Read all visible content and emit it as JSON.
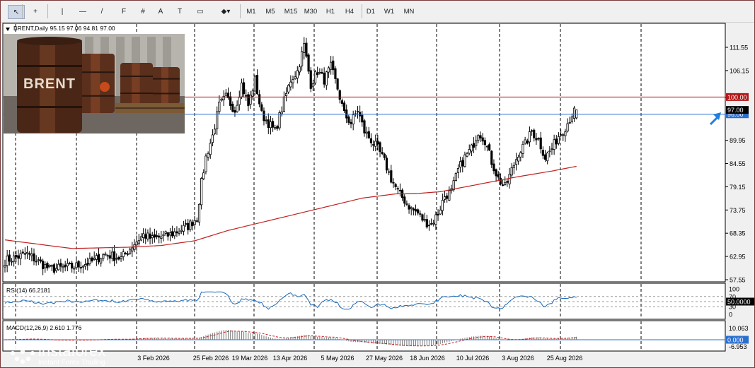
{
  "toolbar": {
    "tools": [
      {
        "name": "cursor-icon",
        "glyph": "↖"
      },
      {
        "name": "crosshair-icon",
        "glyph": "+"
      },
      {
        "name": "vertical-line-icon",
        "glyph": "|"
      },
      {
        "name": "horizontal-line-icon",
        "glyph": "—"
      },
      {
        "name": "trendline-icon",
        "glyph": "/"
      },
      {
        "name": "fibonacci-icon",
        "glyph": "F"
      },
      {
        "name": "grid-tool-icon",
        "glyph": "#"
      },
      {
        "name": "text-tool-icon",
        "glyph": "A"
      },
      {
        "name": "text-label-icon",
        "glyph": "T"
      },
      {
        "name": "rectangle-icon",
        "glyph": "▭"
      },
      {
        "name": "shapes-menu-icon",
        "glyph": "◆▾"
      }
    ],
    "timeframes": [
      "M1",
      "M5",
      "M15",
      "M30",
      "H1",
      "H4",
      "D1",
      "W1",
      "MN"
    ]
  },
  "chart_data": {
    "type": "candlestick",
    "symbol_line": {
      "symbol": "BRENT",
      "period": "Daily",
      "open": "95.15",
      "high": "97.06",
      "low": "94.81",
      "close": "97.00"
    },
    "y_ticks": [
      "111.55",
      "106.15",
      "99.95",
      "89.95",
      "84.55",
      "79.15",
      "73.75",
      "68.35",
      "62.95",
      "57.55"
    ],
    "x_ticks": [
      "3 Feb 2026",
      "25 Feb 2026",
      "19 Mar 2026",
      "13 Apr 2026",
      "5 May 2026",
      "27 May 2026",
      "18 Jun 2026",
      "10 Jul 2026",
      "3 Aug 2026",
      "25 Aug 2026"
    ],
    "levels": [
      {
        "value": 100.0,
        "label": "100.00",
        "color": "#b01818"
      },
      {
        "value": 96.0,
        "label": "96.00",
        "color": "#2a6fd0"
      },
      {
        "value": 97.0,
        "label": "97.00",
        "color": "#000000"
      }
    ],
    "close_anchors": [
      [
        0,
        62
      ],
      [
        10,
        63.5
      ],
      [
        20,
        60
      ],
      [
        30,
        60.5
      ],
      [
        38,
        61.5
      ],
      [
        45,
        63.5
      ],
      [
        52,
        62.5
      ],
      [
        58,
        66
      ],
      [
        62,
        68
      ],
      [
        66,
        67
      ],
      [
        74,
        68
      ],
      [
        82,
        70
      ],
      [
        86,
        72
      ],
      [
        88,
        80
      ],
      [
        90,
        86
      ],
      [
        93,
        91
      ],
      [
        96,
        98
      ],
      [
        99,
        100
      ],
      [
        103,
        97
      ],
      [
        106,
        103
      ],
      [
        109,
        98
      ],
      [
        112,
        104
      ],
      [
        115,
        96
      ],
      [
        118,
        94
      ],
      [
        121,
        92
      ],
      [
        125,
        99
      ],
      [
        128,
        104
      ],
      [
        131,
        106
      ],
      [
        134,
        112
      ],
      [
        137,
        103
      ],
      [
        140,
        106
      ],
      [
        143,
        104
      ],
      [
        146,
        107
      ],
      [
        149,
        102
      ],
      [
        152,
        96
      ],
      [
        155,
        94
      ],
      [
        158,
        97
      ],
      [
        161,
        92
      ],
      [
        164,
        90
      ],
      [
        167,
        88
      ],
      [
        170,
        85
      ],
      [
        173,
        81
      ],
      [
        176,
        78
      ],
      [
        179,
        76
      ],
      [
        182,
        74
      ],
      [
        185,
        73
      ],
      [
        188,
        71
      ],
      [
        191,
        70.5
      ],
      [
        194,
        73
      ],
      [
        197,
        77
      ],
      [
        200,
        78
      ],
      [
        203,
        83
      ],
      [
        206,
        86
      ],
      [
        209,
        88
      ],
      [
        212,
        92
      ],
      [
        215,
        90
      ],
      [
        218,
        85
      ],
      [
        221,
        81
      ],
      [
        224,
        79
      ],
      [
        227,
        83
      ],
      [
        230,
        87
      ],
      [
        233,
        89
      ],
      [
        236,
        92
      ],
      [
        239,
        90
      ],
      [
        242,
        86
      ],
      [
        245,
        88
      ],
      [
        248,
        91
      ],
      [
        251,
        93
      ],
      [
        254,
        96
      ],
      [
        256,
        97
      ]
    ],
    "ma200": [
      [
        0,
        66.8
      ],
      [
        30,
        64.8
      ],
      [
        55,
        65.1
      ],
      [
        70,
        65.5
      ],
      [
        85,
        66.6
      ],
      [
        100,
        69.0
      ],
      [
        120,
        71.5
      ],
      [
        140,
        74.0
      ],
      [
        160,
        76.5
      ],
      [
        175,
        77.5
      ],
      [
        185,
        77.6
      ],
      [
        195,
        78.0
      ],
      [
        210,
        79.5
      ],
      [
        230,
        81.5
      ],
      [
        245,
        82.8
      ],
      [
        256,
        83.9
      ]
    ],
    "rsi": {
      "label": "RSI(14) 66.2181",
      "value": 66.2181,
      "ticks": [
        "100",
        "70",
        "50.0000",
        "30",
        "0"
      ],
      "levels": [
        70,
        50,
        30
      ]
    },
    "macd": {
      "label": "MACD(12,26,9) 2.610 1.776",
      "macd": 2.61,
      "signal": 1.776,
      "ticks": [
        "10.063",
        "0.000",
        "-6.953"
      ]
    }
  },
  "watermark": {
    "brand": "instaforex",
    "tagline": "Instant Forex Trading"
  },
  "image_text": "BRENT",
  "colors": {
    "up": "#ffffff",
    "down": "#000000",
    "ma": "#c02020",
    "rsi": "#1a6ab8",
    "arrow": "#1f7fe0",
    "red_level": "#b01818",
    "blue_level": "#2a6fd0"
  }
}
